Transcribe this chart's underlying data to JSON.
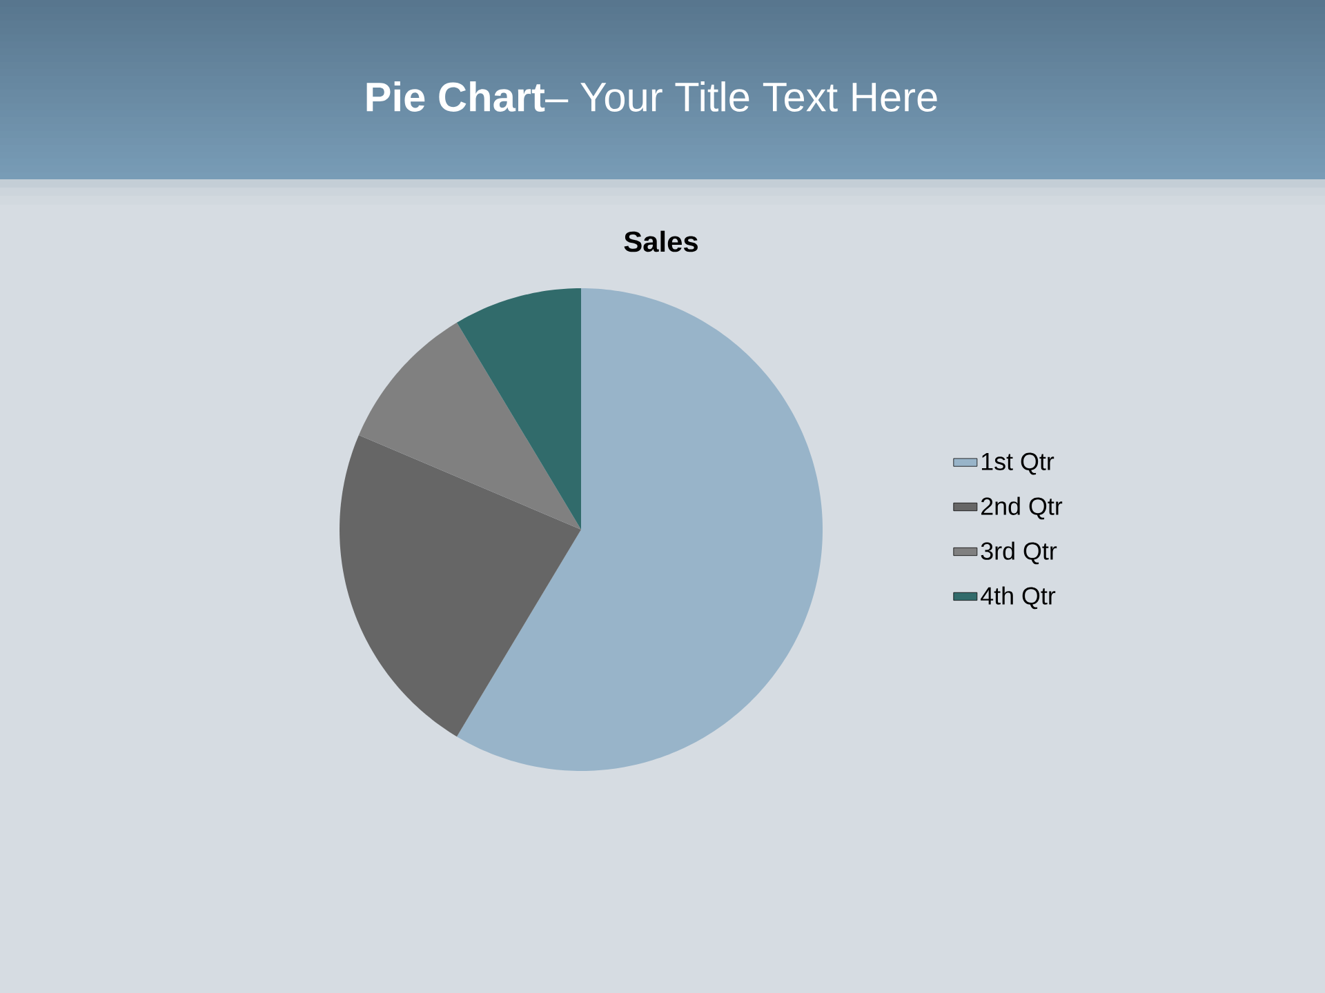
{
  "chart_data": {
    "type": "pie",
    "title": "**Pie Chart**– Your Title Text Here",
    "subtitle": "Sales",
    "categories": [
      "1st Qtr",
      "2nd Qtr",
      "3rd Qtr",
      "4th Qtr"
    ],
    "values": [
      58.6,
      22.8,
      10.0,
      8.6
    ],
    "colors": [
      "#98b4c9",
      "#666666",
      "#808080",
      "#316b6b"
    ],
    "legend": "right"
  }
}
